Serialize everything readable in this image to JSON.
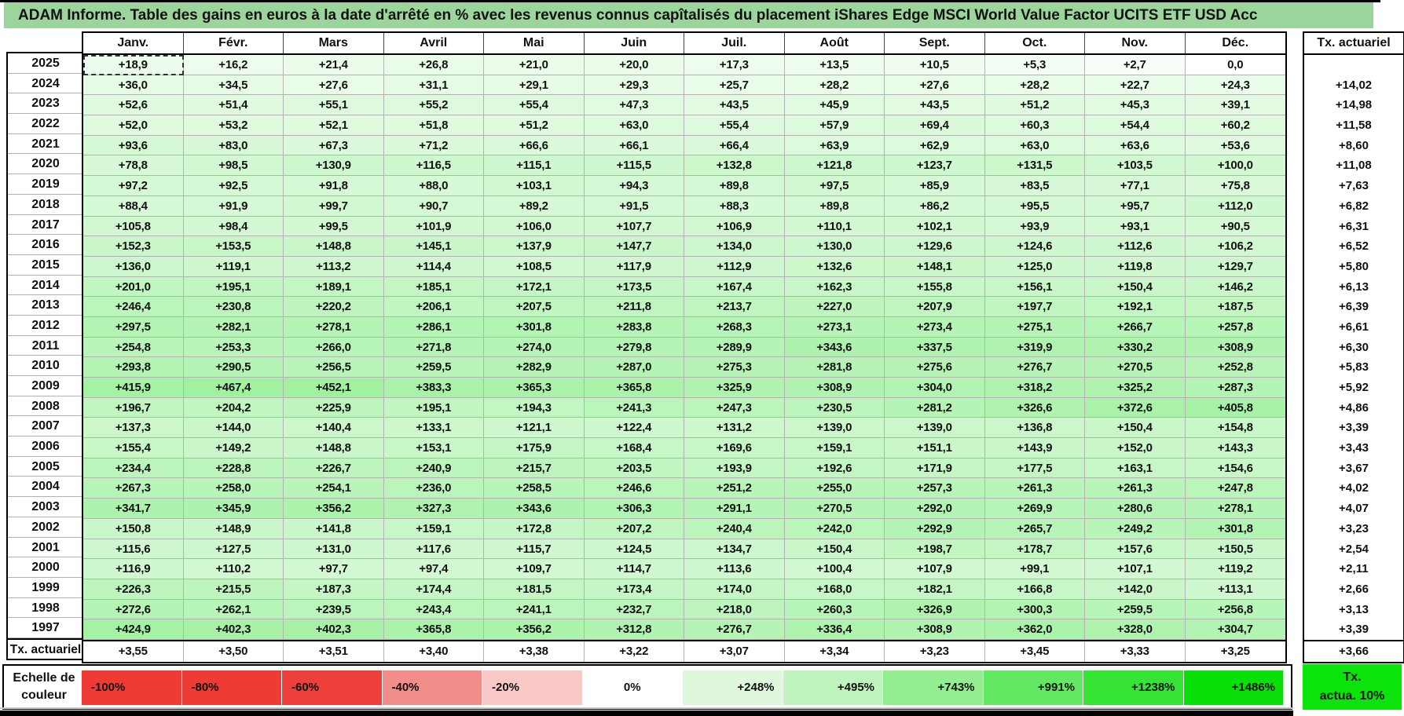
{
  "title": "ADAM Informe. Table des gains en euros à la date d'arrêté en % avec les revenus connus capîtalisés du placement iShares Edge MSCI World Value Factor UCITS ETF USD Acc",
  "colors": {
    "title_bg": "#9CD59B",
    "max_green": "#00E400",
    "grid_line": "#b3b3b3"
  },
  "table": {
    "month_headers": [
      "Janv.",
      "Févr.",
      "Mars",
      "Avril",
      "Mai",
      "Juin",
      "Juil.",
      "Août",
      "Sept.",
      "Oct.",
      "Nov.",
      "Déc."
    ],
    "right_header": "Tx. actuariel",
    "bottom_row_label": "Tx. actuariel",
    "rows": [
      {
        "year": "2025",
        "months": [
          "+18,9",
          "+16,2",
          "+21,4",
          "+26,8",
          "+21,0",
          "+20,0",
          "+17,3",
          "+13,5",
          "+10,5",
          "+5,3",
          "+2,7",
          "0,0"
        ],
        "tx": ""
      },
      {
        "year": "2024",
        "months": [
          "+36,0",
          "+34,5",
          "+27,6",
          "+31,1",
          "+29,1",
          "+29,3",
          "+25,7",
          "+28,2",
          "+27,6",
          "+28,2",
          "+22,7",
          "+24,3"
        ],
        "tx": "+14,02"
      },
      {
        "year": "2023",
        "months": [
          "+52,6",
          "+51,4",
          "+55,1",
          "+55,2",
          "+55,4",
          "+47,3",
          "+43,5",
          "+45,9",
          "+43,5",
          "+51,2",
          "+45,3",
          "+39,1"
        ],
        "tx": "+14,98"
      },
      {
        "year": "2022",
        "months": [
          "+52,0",
          "+53,2",
          "+52,1",
          "+51,8",
          "+51,2",
          "+63,0",
          "+55,4",
          "+57,9",
          "+69,4",
          "+60,3",
          "+54,4",
          "+60,2"
        ],
        "tx": "+11,58"
      },
      {
        "year": "2021",
        "months": [
          "+93,6",
          "+83,0",
          "+67,3",
          "+71,2",
          "+66,6",
          "+66,1",
          "+66,4",
          "+63,9",
          "+62,9",
          "+63,0",
          "+63,6",
          "+53,6"
        ],
        "tx": "+8,60"
      },
      {
        "year": "2020",
        "months": [
          "+78,8",
          "+98,5",
          "+130,9",
          "+116,5",
          "+115,1",
          "+115,5",
          "+132,8",
          "+121,8",
          "+123,7",
          "+131,5",
          "+103,5",
          "+100,0"
        ],
        "tx": "+11,08"
      },
      {
        "year": "2019",
        "months": [
          "+97,2",
          "+92,5",
          "+91,8",
          "+88,0",
          "+103,1",
          "+94,3",
          "+89,8",
          "+97,5",
          "+85,9",
          "+83,5",
          "+77,1",
          "+75,8"
        ],
        "tx": "+7,63"
      },
      {
        "year": "2018",
        "months": [
          "+88,4",
          "+91,9",
          "+99,7",
          "+90,7",
          "+89,2",
          "+91,5",
          "+88,3",
          "+89,8",
          "+86,2",
          "+95,5",
          "+95,7",
          "+112,0"
        ],
        "tx": "+6,82"
      },
      {
        "year": "2017",
        "months": [
          "+105,8",
          "+98,4",
          "+99,5",
          "+101,9",
          "+106,0",
          "+107,7",
          "+106,9",
          "+110,1",
          "+102,1",
          "+93,9",
          "+93,1",
          "+90,5"
        ],
        "tx": "+6,31"
      },
      {
        "year": "2016",
        "months": [
          "+152,3",
          "+153,5",
          "+148,8",
          "+145,1",
          "+137,9",
          "+147,7",
          "+134,0",
          "+130,0",
          "+129,6",
          "+124,6",
          "+112,6",
          "+106,2"
        ],
        "tx": "+6,52"
      },
      {
        "year": "2015",
        "months": [
          "+136,0",
          "+119,1",
          "+113,2",
          "+114,4",
          "+108,5",
          "+117,9",
          "+112,9",
          "+132,6",
          "+148,1",
          "+125,0",
          "+119,8",
          "+129,7"
        ],
        "tx": "+5,80"
      },
      {
        "year": "2014",
        "months": [
          "+201,0",
          "+195,1",
          "+189,1",
          "+185,1",
          "+172,1",
          "+173,5",
          "+167,4",
          "+162,3",
          "+155,8",
          "+156,1",
          "+150,4",
          "+146,2"
        ],
        "tx": "+6,13"
      },
      {
        "year": "2013",
        "months": [
          "+246,4",
          "+230,8",
          "+220,2",
          "+206,1",
          "+207,5",
          "+211,8",
          "+213,7",
          "+227,0",
          "+207,9",
          "+197,7",
          "+192,1",
          "+187,5"
        ],
        "tx": "+6,39"
      },
      {
        "year": "2012",
        "months": [
          "+297,5",
          "+282,1",
          "+278,1",
          "+286,1",
          "+301,8",
          "+283,8",
          "+268,3",
          "+273,1",
          "+273,4",
          "+275,1",
          "+266,7",
          "+257,8"
        ],
        "tx": "+6,61"
      },
      {
        "year": "2011",
        "months": [
          "+254,8",
          "+253,3",
          "+266,0",
          "+271,8",
          "+274,0",
          "+279,8",
          "+289,9",
          "+343,6",
          "+337,5",
          "+319,9",
          "+330,2",
          "+308,9"
        ],
        "tx": "+6,30"
      },
      {
        "year": "2010",
        "months": [
          "+293,8",
          "+290,5",
          "+256,5",
          "+259,5",
          "+282,9",
          "+287,0",
          "+275,3",
          "+281,8",
          "+275,6",
          "+276,7",
          "+270,5",
          "+252,8"
        ],
        "tx": "+5,83"
      },
      {
        "year": "2009",
        "months": [
          "+415,9",
          "+467,4",
          "+452,1",
          "+383,3",
          "+365,3",
          "+365,8",
          "+325,9",
          "+308,9",
          "+304,0",
          "+318,2",
          "+325,2",
          "+287,3"
        ],
        "tx": "+5,92"
      },
      {
        "year": "2008",
        "months": [
          "+196,7",
          "+204,2",
          "+225,9",
          "+195,1",
          "+194,3",
          "+241,3",
          "+247,3",
          "+230,5",
          "+281,2",
          "+326,6",
          "+372,6",
          "+405,8"
        ],
        "tx": "+4,86"
      },
      {
        "year": "2007",
        "months": [
          "+137,3",
          "+144,0",
          "+140,4",
          "+133,1",
          "+121,1",
          "+122,4",
          "+131,2",
          "+139,0",
          "+139,0",
          "+136,8",
          "+150,4",
          "+154,8"
        ],
        "tx": "+3,39"
      },
      {
        "year": "2006",
        "months": [
          "+155,4",
          "+149,2",
          "+148,8",
          "+153,1",
          "+175,9",
          "+168,4",
          "+169,6",
          "+159,1",
          "+151,1",
          "+143,9",
          "+152,0",
          "+143,3"
        ],
        "tx": "+3,43"
      },
      {
        "year": "2005",
        "months": [
          "+234,4",
          "+228,8",
          "+226,7",
          "+240,9",
          "+215,7",
          "+203,5",
          "+193,9",
          "+192,6",
          "+171,9",
          "+177,5",
          "+163,1",
          "+154,6"
        ],
        "tx": "+3,67"
      },
      {
        "year": "2004",
        "months": [
          "+267,3",
          "+258,0",
          "+254,1",
          "+236,0",
          "+258,5",
          "+246,6",
          "+251,2",
          "+255,0",
          "+257,3",
          "+261,3",
          "+261,3",
          "+247,8"
        ],
        "tx": "+4,02"
      },
      {
        "year": "2003",
        "months": [
          "+341,7",
          "+345,9",
          "+356,2",
          "+327,3",
          "+343,6",
          "+306,3",
          "+291,1",
          "+270,5",
          "+292,0",
          "+269,9",
          "+280,6",
          "+278,1"
        ],
        "tx": "+4,07"
      },
      {
        "year": "2002",
        "months": [
          "+150,8",
          "+148,9",
          "+141,8",
          "+159,1",
          "+172,8",
          "+207,2",
          "+240,4",
          "+242,0",
          "+292,9",
          "+265,7",
          "+249,2",
          "+301,8"
        ],
        "tx": "+3,23"
      },
      {
        "year": "2001",
        "months": [
          "+115,6",
          "+127,5",
          "+131,0",
          "+117,6",
          "+115,7",
          "+124,5",
          "+134,7",
          "+150,4",
          "+198,7",
          "+178,7",
          "+157,6",
          "+150,5"
        ],
        "tx": "+2,54"
      },
      {
        "year": "2000",
        "months": [
          "+116,9",
          "+110,2",
          "+97,7",
          "+97,4",
          "+109,7",
          "+114,7",
          "+113,6",
          "+100,4",
          "+107,9",
          "+99,1",
          "+107,1",
          "+119,2"
        ],
        "tx": "+2,11"
      },
      {
        "year": "1999",
        "months": [
          "+226,3",
          "+215,5",
          "+187,3",
          "+174,4",
          "+181,5",
          "+173,4",
          "+174,0",
          "+168,0",
          "+182,1",
          "+166,8",
          "+142,0",
          "+113,1"
        ],
        "tx": "+2,66"
      },
      {
        "year": "1998",
        "months": [
          "+272,6",
          "+262,1",
          "+239,5",
          "+243,4",
          "+241,1",
          "+232,7",
          "+218,0",
          "+260,3",
          "+326,9",
          "+300,3",
          "+259,5",
          "+256,8"
        ],
        "tx": "+3,13"
      },
      {
        "year": "1997",
        "months": [
          "+424,9",
          "+402,3",
          "+402,3",
          "+365,8",
          "+356,2",
          "+312,8",
          "+276,7",
          "+336,4",
          "+308,9",
          "+362,0",
          "+328,0",
          "+304,7"
        ],
        "tx": "+3,39"
      }
    ],
    "bottom_row": {
      "values": [
        "+3,55",
        "+3,50",
        "+3,51",
        "+3,40",
        "+3,38",
        "+3,22",
        "+3,07",
        "+3,34",
        "+3,23",
        "+3,45",
        "+3,33",
        "+3,25"
      ],
      "tx": "+3,66"
    },
    "scale_max_percent": 1486
  },
  "color_scale": {
    "label_line1": "Echelle de",
    "label_line2": "couleur",
    "cells": [
      {
        "label": "-100%",
        "color": "#EE3B36",
        "align": "left"
      },
      {
        "label": "-80%",
        "color": "#EE3B36",
        "align": "left"
      },
      {
        "label": "-60%",
        "color": "#EE403B",
        "align": "left"
      },
      {
        "label": "-40%",
        "color": "#F18E8A",
        "align": "left"
      },
      {
        "label": "-20%",
        "color": "#F9C9C7",
        "align": "left"
      },
      {
        "label": "0%",
        "color": "#FFFFFF",
        "align": "center"
      },
      {
        "label": "+248%",
        "color": "#DFF8DD",
        "align": "right"
      },
      {
        "label": "+495%",
        "color": "#BFF4BD",
        "align": "right"
      },
      {
        "label": "+743%",
        "color": "#92EE90",
        "align": "right"
      },
      {
        "label": "+991%",
        "color": "#63E961",
        "align": "right"
      },
      {
        "label": "+1238%",
        "color": "#35E434",
        "align": "right"
      },
      {
        "label": "+1486%",
        "color": "#0ADF0A",
        "align": "right"
      }
    ],
    "right_box": {
      "line1": "Tx.",
      "line2": "actua. 10%",
      "color": "#0BE40B"
    }
  }
}
